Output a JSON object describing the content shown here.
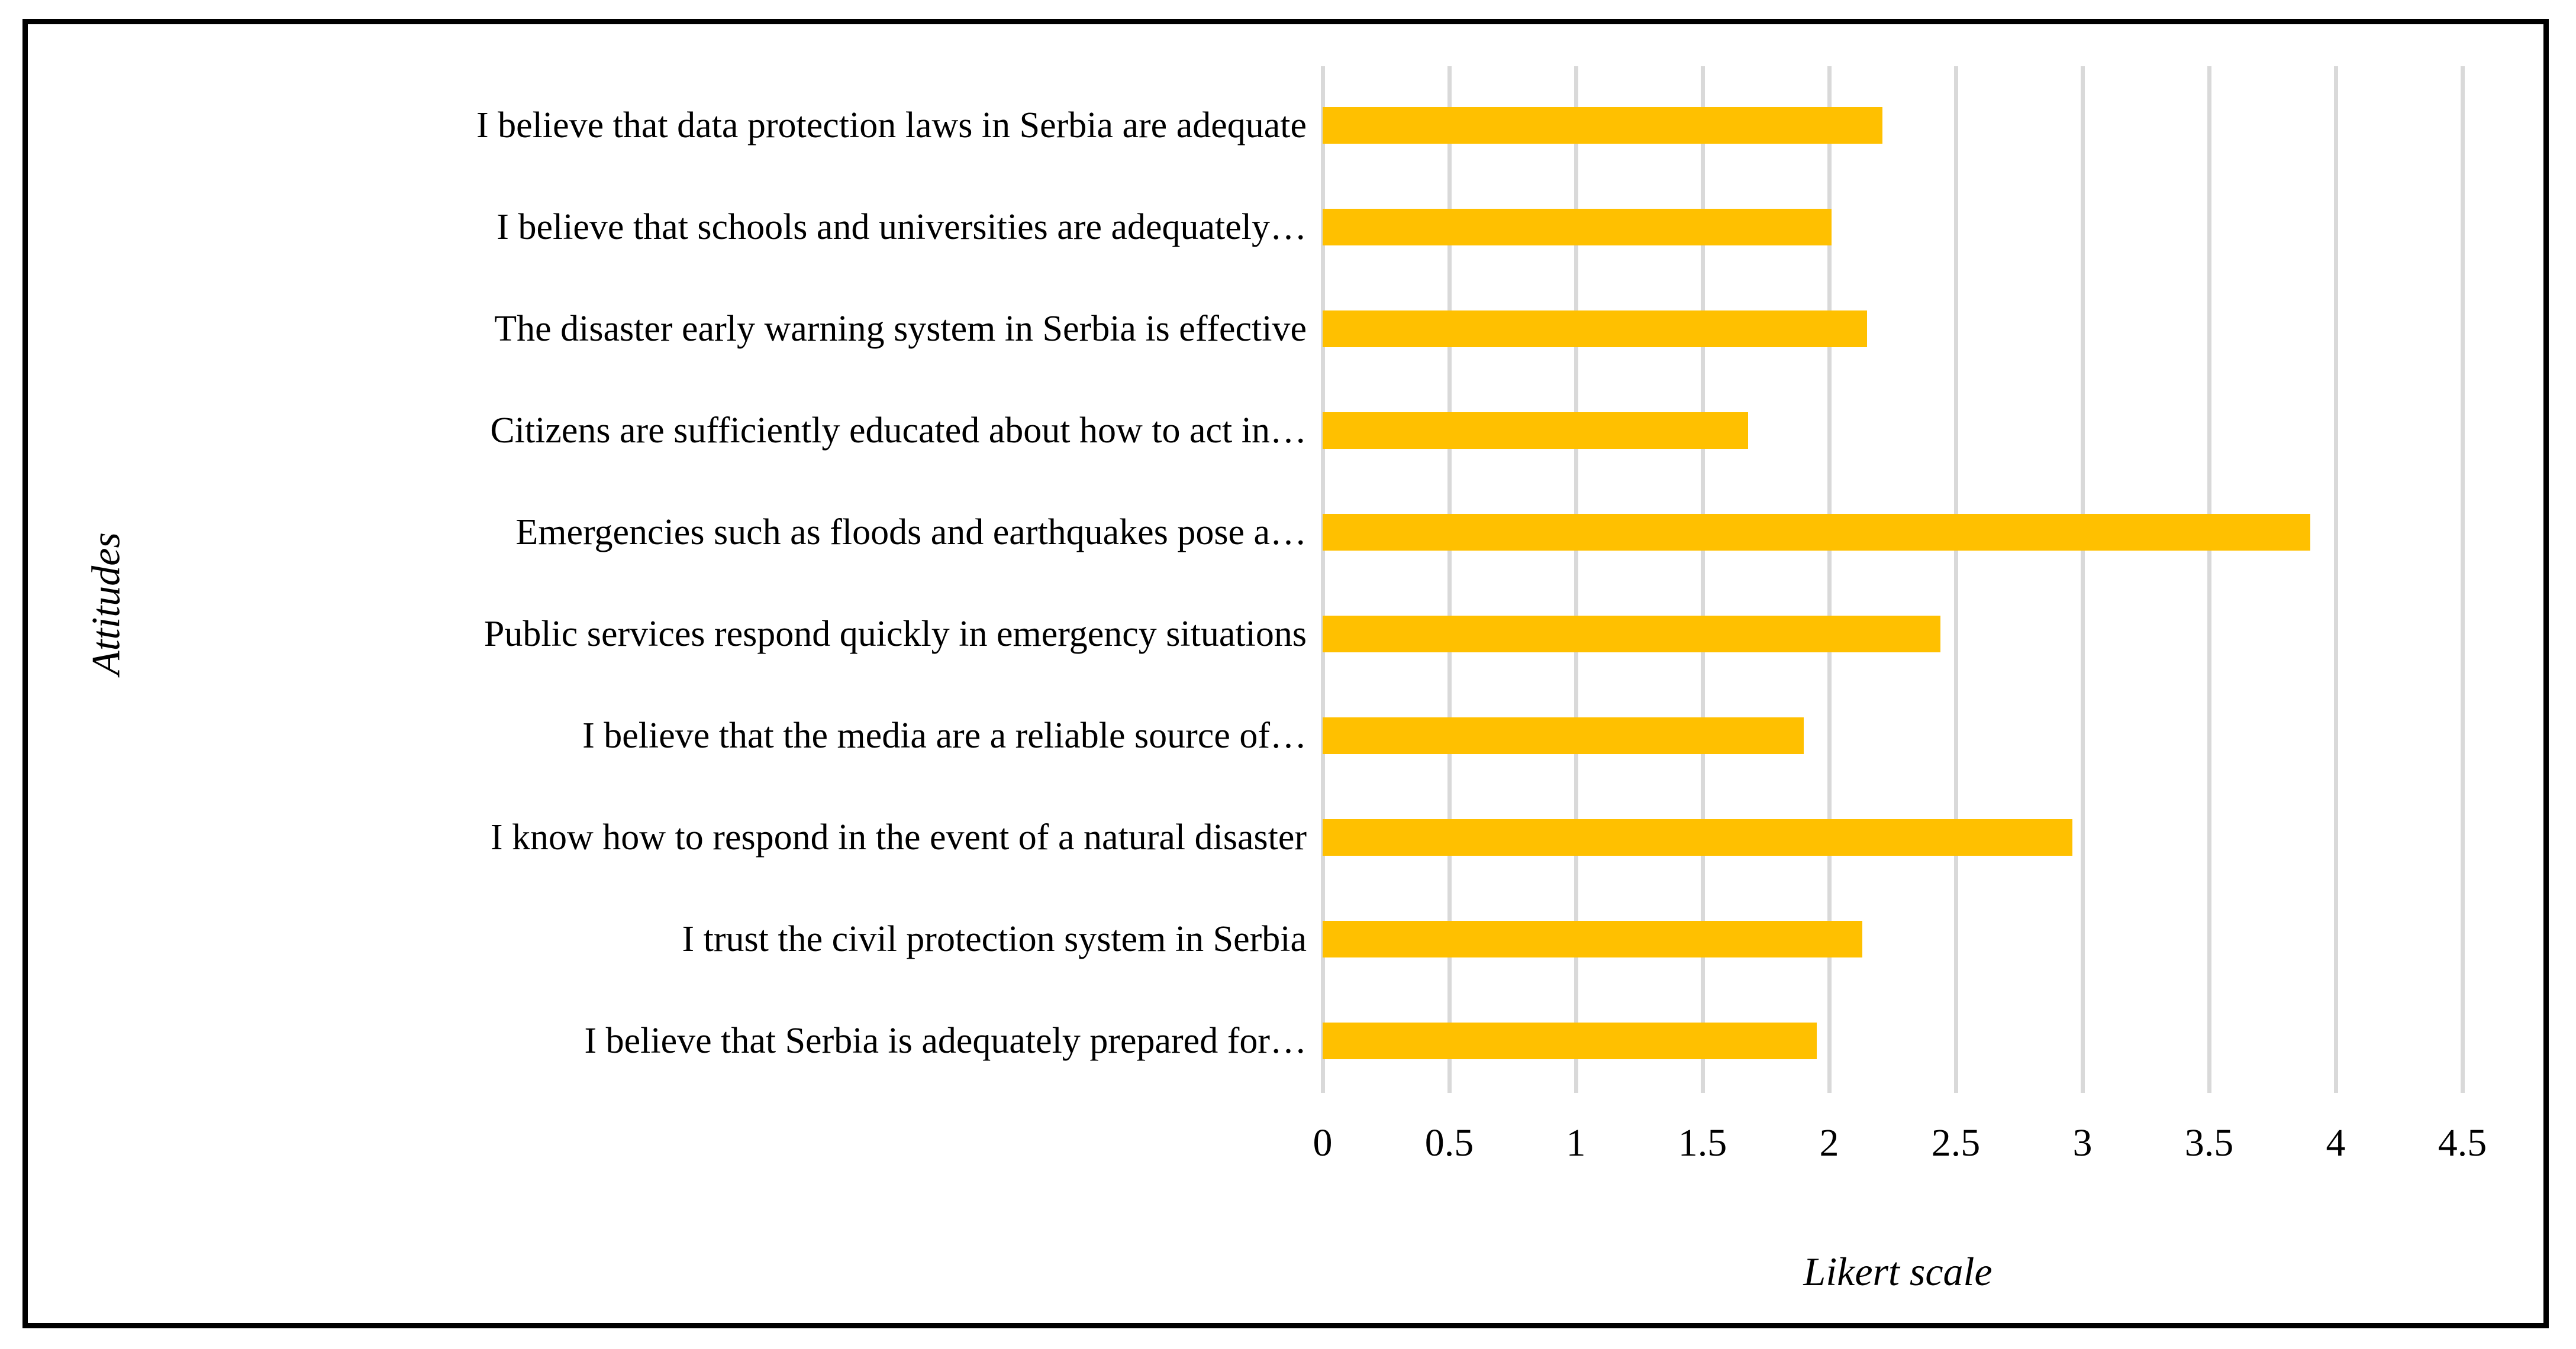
{
  "figure": {
    "background": "#ffffff",
    "border_color": "#000000"
  },
  "chart_data": {
    "type": "bar",
    "orientation": "horizontal",
    "title": "",
    "xlabel": "Likert scale",
    "ylabel": "Attitudes",
    "categories": [
      "I believe that data protection laws in Serbia are adequate",
      "I believe that schools and universities are adequately…",
      "The disaster early warning system in Serbia is effective",
      "Citizens are sufficiently educated about how to act in…",
      "Emergencies such as floods and earthquakes pose a…",
      "Public services respond quickly in emergency situations",
      "I believe that the media are a reliable source of…",
      "I know how to respond in the event of a natural disaster",
      "I trust the civil protection system in Serbia",
      "I believe that Serbia is adequately prepared for…"
    ],
    "values": [
      2.21,
      2.01,
      2.15,
      1.68,
      3.9,
      2.44,
      1.9,
      2.96,
      2.13,
      1.95
    ],
    "xlim": [
      0,
      4.5
    ],
    "xticks": [
      0,
      0.5,
      1,
      1.5,
      2,
      2.5,
      3,
      3.5,
      4,
      4.5
    ],
    "xtick_labels": [
      "0",
      "0.5",
      "1",
      "1.5",
      "2",
      "2.5",
      "3",
      "3.5",
      "4",
      "4.5"
    ],
    "bar_color": "#FFC000",
    "gridline_color": "#D9D9D9",
    "grid": "vertical",
    "legend": "none"
  },
  "layout_note": "horizontal bar chart, bars start at 0 axis, vertical gridlines every 0.5"
}
